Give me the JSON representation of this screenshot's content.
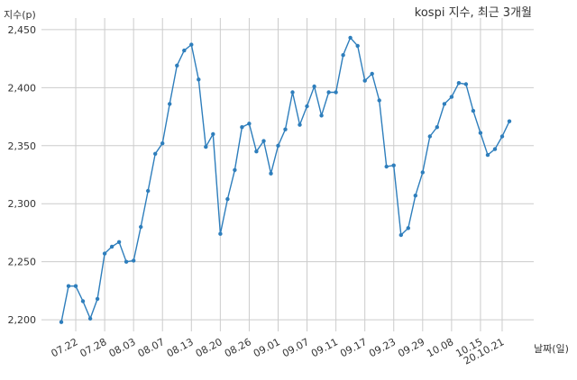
{
  "chart_data": {
    "type": "line",
    "title": "kospi 지수, 최근 3개월",
    "xlabel": "날짜(일)",
    "ylabel": "지수(p)",
    "ylim": [
      2190,
      2460
    ],
    "yticks": [
      2200,
      2250,
      2300,
      2350,
      2400,
      2450
    ],
    "ytick_labels": [
      "2,200",
      "2,250",
      "2,300",
      "2,350",
      "2,400",
      "2,450"
    ],
    "xtick_labels": [
      "07.22",
      "07.28",
      "08.03",
      "08.07",
      "08.13",
      "08.20",
      "08.26",
      "09.01",
      "09.07",
      "09.11",
      "09.17",
      "09.23",
      "09.29",
      "10.08",
      "10.15",
      "20.10.21"
    ],
    "xtick_index": [
      2,
      6,
      10,
      14,
      18,
      22,
      26,
      30,
      34,
      38,
      42,
      46,
      50,
      54,
      58,
      61
    ],
    "grid": true,
    "color": "#2e7ebc",
    "series": [
      {
        "values": [
          2198,
          2229,
          2229,
          2216,
          2201,
          2218,
          2257,
          2263,
          2267,
          2250,
          2251,
          2280,
          2311,
          2343,
          2352,
          2386,
          2419,
          2432,
          2437,
          2407,
          2349,
          2360,
          2274,
          2304,
          2329,
          2366,
          2369,
          2345,
          2354,
          2326,
          2350,
          2364,
          2396,
          2368,
          2384,
          2401,
          2376,
          2396,
          2396,
          2428,
          2443,
          2436,
          2406,
          2412,
          2389,
          2332,
          2333,
          2273,
          2279,
          2307,
          2327,
          2358,
          2366,
          2386,
          2392,
          2404,
          2403,
          2380,
          2361,
          2342,
          2347,
          2358,
          2371
        ]
      }
    ]
  }
}
